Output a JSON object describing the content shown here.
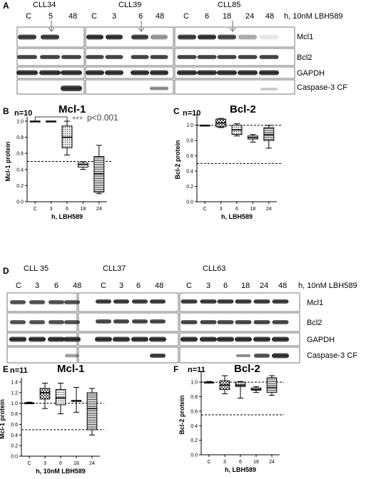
{
  "panels": {
    "A": {
      "letter": "A",
      "cell_lines": [
        {
          "name": "CLL34",
          "lanes": [
            "C",
            "5",
            "48"
          ]
        },
        {
          "name": "CLL39",
          "lanes": [
            "C",
            "3",
            "6",
            "48"
          ]
        },
        {
          "name": "CLL85",
          "lanes": [
            "C",
            "6",
            "18",
            "24",
            "48"
          ]
        }
      ],
      "condition": "h, 10nM LBH589",
      "rows": [
        "Mcl1",
        "Bcl2",
        "GAPDH",
        "Caspase-3 CF"
      ]
    },
    "D": {
      "letter": "D",
      "cell_lines": [
        {
          "name": "CLL 35",
          "lanes": [
            "C",
            "3",
            "6",
            "48"
          ]
        },
        {
          "name": "CLL37",
          "lanes": [
            "C",
            "3",
            "6",
            "48"
          ]
        },
        {
          "name": "CLL63",
          "lanes": [
            "C",
            "3",
            "6",
            "18",
            "24",
            "48"
          ]
        }
      ],
      "condition": "h, 10nM LBH589",
      "rows": [
        "Mcl1",
        "Bcl2",
        "GAPDH",
        "Caspase-3 CF"
      ]
    }
  },
  "chart_data": [
    {
      "id": "B",
      "letter": "B",
      "type": "box",
      "title": "Mcl-1",
      "n_label": "n=10",
      "categories": [
        "C",
        "3",
        "6",
        "18",
        "24"
      ],
      "xlabel": "h, LBH589",
      "ylabel": "Mcl-1 protein",
      "ylim": [
        0.0,
        1.0
      ],
      "yticks": [
        "0.0",
        "0.2",
        "0.4",
        "0.6",
        "0.8",
        "1.0"
      ],
      "ref_line": 0.5,
      "boxes": [
        {
          "cat": "C",
          "min": 1.0,
          "q1": 1.0,
          "median": 1.0,
          "q3": 1.0,
          "max": 1.0,
          "fill": "none"
        },
        {
          "cat": "3",
          "min": 1.0,
          "q1": 1.0,
          "median": 1.0,
          "q3": 1.0,
          "max": 1.0,
          "fill": "none"
        },
        {
          "cat": "6",
          "min": 0.58,
          "q1": 0.67,
          "median": 0.8,
          "q3": 0.94,
          "max": 1.0,
          "fill": "dots"
        },
        {
          "cat": "18",
          "min": 0.4,
          "q1": 0.43,
          "median": 0.46,
          "q3": 0.48,
          "max": 0.5,
          "fill": "none"
        },
        {
          "cat": "24",
          "min": 0.1,
          "q1": 0.12,
          "median": 0.35,
          "q3": 0.56,
          "max": 0.7,
          "fill": "hlines"
        }
      ],
      "annotation": {
        "stars": "***",
        "text": "p<0.001"
      }
    },
    {
      "id": "C",
      "letter": "C",
      "type": "box",
      "title": "Bcl-2",
      "n_label": "n=10",
      "categories": [
        "C",
        "3",
        "6",
        "18",
        "24"
      ],
      "xlabel": "h, LBH589",
      "ylabel": "Bcl-2 protein",
      "ylim": [
        0.0,
        1.1
      ],
      "yticks": [
        "0.0",
        "0.2",
        "0.4",
        "0.6",
        "0.8",
        "1.0"
      ],
      "ref_lines": [
        1.0,
        0.5
      ],
      "boxes": [
        {
          "cat": "C",
          "min": 1.0,
          "q1": 1.0,
          "median": 1.0,
          "q3": 1.0,
          "max": 1.0,
          "fill": "none"
        },
        {
          "cat": "3",
          "min": 0.97,
          "q1": 0.98,
          "median": 1.03,
          "q3": 1.08,
          "max": 1.09,
          "fill": "checker"
        },
        {
          "cat": "6",
          "min": 0.86,
          "q1": 0.88,
          "median": 0.94,
          "q3": 1.0,
          "max": 1.02,
          "fill": "dots"
        },
        {
          "cat": "18",
          "min": 0.78,
          "q1": 0.82,
          "median": 0.84,
          "q3": 0.86,
          "max": 0.88,
          "fill": "none"
        },
        {
          "cat": "24",
          "min": 0.7,
          "q1": 0.8,
          "median": 0.88,
          "q3": 0.97,
          "max": 1.0,
          "fill": "hlines"
        }
      ]
    },
    {
      "id": "E",
      "letter": "E",
      "type": "box",
      "title": "Mcl-1",
      "n_label": "n=11",
      "categories": [
        "C",
        "3",
        "6",
        "18",
        "24"
      ],
      "xlabel": "h, 10nM LBH589",
      "ylabel": "Mcl-1 protein",
      "ylim": [
        0.0,
        1.4
      ],
      "yticks": [
        "0.0",
        "0.2",
        "0.4",
        "0.6",
        "0.8",
        "1.0",
        "1.2",
        "1.4"
      ],
      "ref_lines": [
        1.0,
        0.5
      ],
      "boxes": [
        {
          "cat": "C",
          "min": 0.99,
          "q1": 0.99,
          "median": 1.0,
          "q3": 1.01,
          "max": 1.02,
          "fill": "dots"
        },
        {
          "cat": "3",
          "min": 0.9,
          "q1": 1.08,
          "median": 1.2,
          "q3": 1.28,
          "max": 1.38,
          "fill": "checker"
        },
        {
          "cat": "6",
          "min": 0.8,
          "q1": 0.97,
          "median": 1.1,
          "q3": 1.26,
          "max": 1.38,
          "fill": "dots"
        },
        {
          "cat": "18",
          "min": 0.83,
          "q1": 1.05,
          "median": 1.05,
          "q3": 1.05,
          "max": 1.3,
          "fill": "none"
        },
        {
          "cat": "24",
          "min": 0.4,
          "q1": 0.5,
          "median": 0.9,
          "q3": 1.2,
          "max": 1.28,
          "fill": "hlines"
        }
      ]
    },
    {
      "id": "F",
      "letter": "F",
      "type": "box",
      "title": "Bcl-2",
      "n_label": "n=11",
      "categories": [
        "C",
        "3",
        "6",
        "18",
        "24"
      ],
      "xlabel": "h, LBH589",
      "ylabel": "Bcl-2 protein",
      "ylim": [
        0.0,
        1.1
      ],
      "yticks": [
        "0.0",
        "0.2",
        "0.4",
        "0.6",
        "0.8",
        "1.0"
      ],
      "ref_lines": [
        1.0,
        0.55
      ],
      "boxes": [
        {
          "cat": "C",
          "min": 0.99,
          "q1": 0.99,
          "median": 1.0,
          "q3": 1.0,
          "max": 1.01,
          "fill": "none"
        },
        {
          "cat": "3",
          "min": 0.84,
          "q1": 0.9,
          "median": 0.96,
          "q3": 1.02,
          "max": 1.09,
          "fill": "checker"
        },
        {
          "cat": "6",
          "min": 0.78,
          "q1": 0.94,
          "median": 0.96,
          "q3": 1.0,
          "max": 1.01,
          "fill": "dots"
        },
        {
          "cat": "18",
          "min": 0.86,
          "q1": 0.89,
          "median": 0.9,
          "q3": 0.92,
          "max": 0.94,
          "fill": "none"
        },
        {
          "cat": "24",
          "min": 0.82,
          "q1": 0.86,
          "median": 0.93,
          "q3": 1.06,
          "max": 1.09,
          "fill": "hlines"
        }
      ]
    }
  ]
}
